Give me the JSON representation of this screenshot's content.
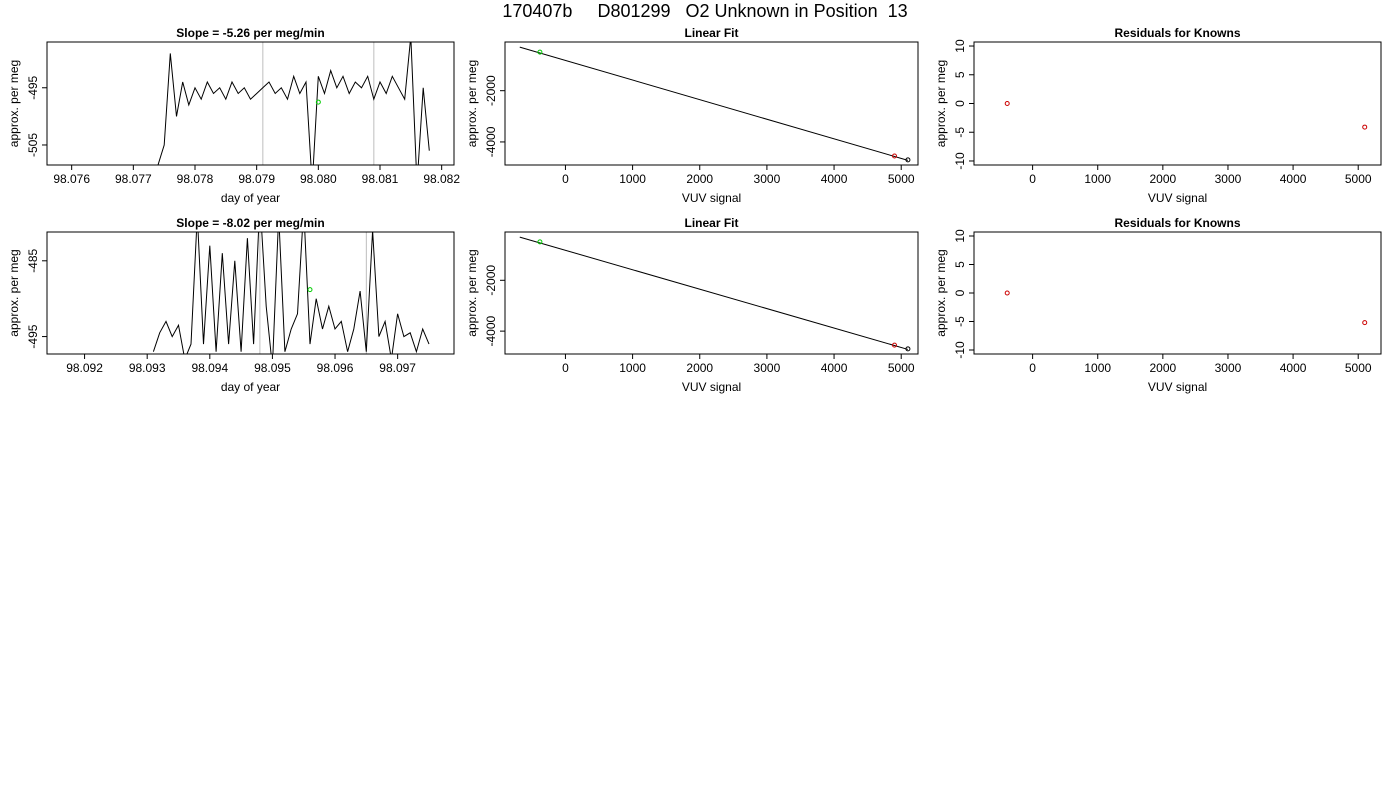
{
  "page_title": "170407b     D801299   O2 Unknown in Position  13",
  "colors": {
    "line": "#000000",
    "grid": "#bebebe",
    "marker_green": "#00cc00",
    "marker_red": "#cc0000"
  },
  "chart_data": [
    {
      "type": "line",
      "title": "Slope =  -5.26  per meg/min",
      "xlabel": "day of year",
      "ylabel": "approx. per meg",
      "xlim": [
        98.0756,
        98.0822
      ],
      "ylim": [
        -508.5,
        -487.0
      ],
      "x_ticks": [
        98.076,
        98.077,
        98.078,
        98.079,
        98.08,
        98.081,
        98.082
      ],
      "x_tick_labels": [
        "98.076",
        "98.077",
        "98.078",
        "98.079",
        "98.080",
        "98.081",
        "98.082"
      ],
      "y_ticks": [
        -495,
        -505
      ],
      "y_tick_labels": [
        "-495",
        "-505"
      ],
      "vlines": [
        98.0791,
        98.0809
      ],
      "series": [
        {
          "x": [
            98.0773,
            98.0775,
            98.0776,
            98.0777,
            98.0778,
            98.0779,
            98.078,
            98.0781,
            98.0782,
            98.0783,
            98.0784,
            98.0785,
            98.0786,
            98.0787,
            98.0788,
            98.0789,
            98.079,
            98.0791,
            98.0792,
            98.0793,
            98.0794,
            98.0795,
            98.0796,
            98.0797,
            98.0798,
            98.0799,
            98.08,
            98.0801,
            98.0802,
            98.0803,
            98.0804,
            98.0805,
            98.0806,
            98.0807,
            98.0808,
            98.0809,
            98.081,
            98.0811,
            98.0812,
            98.0813,
            98.0814,
            98.0815,
            98.0816,
            98.0817,
            98.0818
          ],
          "y": [
            -512,
            -505,
            -489,
            -500,
            -494,
            -498,
            -495,
            -497,
            -494,
            -496,
            -495,
            -497,
            -494,
            -496,
            -495,
            -497,
            -496,
            -495,
            -494,
            -496,
            -495,
            -497,
            -493,
            -496,
            -494,
            -512,
            -493,
            -496,
            -492,
            -495,
            -493,
            -496,
            -494,
            -495,
            -493,
            -497,
            -494,
            -496,
            -493,
            -495,
            -497,
            -486,
            -512,
            -495,
            -506
          ]
        }
      ],
      "marker": {
        "x": 98.08,
        "y": -497.5,
        "color": "green"
      }
    },
    {
      "type": "scatter",
      "title": "Linear Fit",
      "xlabel": "VUV signal",
      "ylabel": "approx. per meg",
      "xlim": [
        -900,
        5250
      ],
      "ylim": [
        -4900,
        -100
      ],
      "x_ticks": [
        0,
        1000,
        2000,
        3000,
        4000,
        5000
      ],
      "x_tick_labels": [
        "0",
        "1000",
        "2000",
        "3000",
        "4000",
        "5000"
      ],
      "y_ticks": [
        -2000,
        -4000
      ],
      "y_tick_labels": [
        "-2000",
        "-4000"
      ],
      "fit_line": {
        "x": [
          -680,
          5100
        ],
        "y": [
          -300,
          -4720
        ]
      },
      "points": [
        {
          "x": -380,
          "y": -495,
          "color": "green"
        },
        {
          "x": 4900,
          "y": -4550,
          "color": "red"
        },
        {
          "x": 5100,
          "y": -4700,
          "color": "black"
        }
      ]
    },
    {
      "type": "scatter",
      "title": "Residuals for Knowns",
      "xlabel": "VUV signal",
      "ylabel": "approx. per meg",
      "xlim": [
        -900,
        5350
      ],
      "ylim": [
        -10.7,
        10.7
      ],
      "x_ticks": [
        0,
        1000,
        2000,
        3000,
        4000,
        5000
      ],
      "x_tick_labels": [
        "0",
        "1000",
        "2000",
        "3000",
        "4000",
        "5000"
      ],
      "y_ticks": [
        10,
        5,
        0,
        -5,
        -10
      ],
      "y_tick_labels": [
        "10",
        "5",
        "0",
        "-5",
        "-10"
      ],
      "points": [
        {
          "x": -390,
          "y": 0.0,
          "color": "red"
        },
        {
          "x": 5100,
          "y": -4.1,
          "color": "red"
        }
      ]
    },
    {
      "type": "line",
      "title": "Slope =  -8.02  per meg/min",
      "xlabel": "day of year",
      "ylabel": "approx. per meg",
      "xlim": [
        98.0914,
        98.0979
      ],
      "ylim": [
        -497.3,
        -481.2
      ],
      "x_ticks": [
        98.092,
        98.093,
        98.094,
        98.095,
        98.096,
        98.097
      ],
      "x_tick_labels": [
        "98.092",
        "98.093",
        "98.094",
        "98.095",
        "98.096",
        "98.097"
      ],
      "y_ticks": [
        -485,
        -495
      ],
      "y_tick_labels": [
        "-485",
        "-495"
      ],
      "vlines": [
        98.0948,
        98.0965
      ],
      "series": [
        {
          "x": [
            98.0931,
            98.0932,
            98.0933,
            98.0934,
            98.0935,
            98.0936,
            98.0937,
            98.0938,
            98.0939,
            98.094,
            98.0941,
            98.0942,
            98.0943,
            98.0944,
            98.0945,
            98.0946,
            98.0947,
            98.0948,
            98.0949,
            98.095,
            98.0951,
            98.0952,
            98.0953,
            98.0954,
            98.0955,
            98.0956,
            98.0957,
            98.0958,
            98.0959,
            98.096,
            98.0961,
            98.0962,
            98.0963,
            98.0964,
            98.0965,
            98.0966,
            98.0967,
            98.0968,
            98.0969,
            98.097,
            98.0971,
            98.0972,
            98.0973,
            98.0974,
            98.0975
          ],
          "y": [
            -497,
            -494.5,
            -493,
            -495,
            -493.5,
            -498,
            -496,
            -479,
            -496,
            -483,
            -497,
            -484,
            -496,
            -485,
            -497,
            -482,
            -496,
            -477,
            -491,
            -499,
            -479,
            -497,
            -494,
            -492,
            -478,
            -496,
            -490,
            -494,
            -491,
            -494,
            -493,
            -497,
            -494,
            -489,
            -497,
            -481,
            -495,
            -493,
            -498,
            -492,
            -495,
            -494.5,
            -497,
            -494,
            -496
          ]
        }
      ],
      "marker": {
        "x": 98.0956,
        "y": -488.8,
        "color": "green"
      }
    },
    {
      "type": "scatter",
      "title": "Linear Fit",
      "xlabel": "VUV signal",
      "ylabel": "approx. per meg",
      "xlim": [
        -900,
        5250
      ],
      "ylim": [
        -4900,
        -100
      ],
      "x_ticks": [
        0,
        1000,
        2000,
        3000,
        4000,
        5000
      ],
      "x_tick_labels": [
        "0",
        "1000",
        "2000",
        "3000",
        "4000",
        "5000"
      ],
      "y_ticks": [
        -2000,
        -4000
      ],
      "y_tick_labels": [
        "-2000",
        "-4000"
      ],
      "fit_line": {
        "x": [
          -680,
          5100
        ],
        "y": [
          -300,
          -4720
        ]
      },
      "points": [
        {
          "x": -380,
          "y": -490,
          "color": "green"
        },
        {
          "x": 4900,
          "y": -4550,
          "color": "red"
        },
        {
          "x": 5100,
          "y": -4700,
          "color": "black"
        }
      ]
    },
    {
      "type": "scatter",
      "title": "Residuals for Knowns",
      "xlabel": "VUV signal",
      "ylabel": "approx. per meg",
      "xlim": [
        -900,
        5350
      ],
      "ylim": [
        -10.7,
        10.7
      ],
      "x_ticks": [
        0,
        1000,
        2000,
        3000,
        4000,
        5000
      ],
      "x_tick_labels": [
        "0",
        "1000",
        "2000",
        "3000",
        "4000",
        "5000"
      ],
      "y_ticks": [
        10,
        5,
        0,
        -5,
        -10
      ],
      "y_tick_labels": [
        "10",
        "5",
        "0",
        "-5",
        "-10"
      ],
      "points": [
        {
          "x": -390,
          "y": 0.0,
          "color": "red"
        },
        {
          "x": 5100,
          "y": -5.2,
          "color": "red"
        }
      ]
    }
  ]
}
